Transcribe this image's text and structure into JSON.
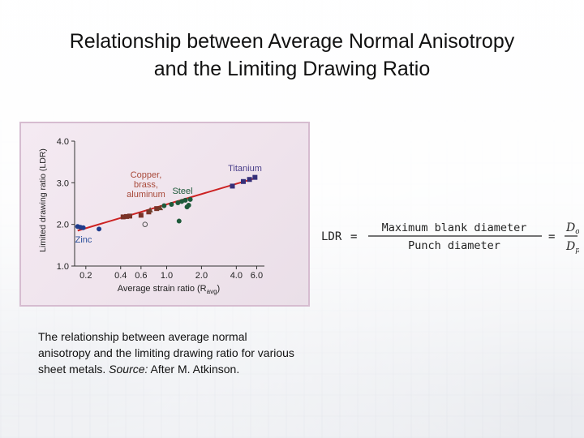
{
  "slide": {
    "title_line1": "Relationship between Average Normal Anisotropy",
    "title_line2": "and the Limiting Drawing Ratio",
    "caption_prefix": "The relationship between average normal anisotropy and the limiting drawing ratio for various sheet metals.  ",
    "caption_source_label": "Source:",
    "caption_source": "  After M. Atkinson."
  },
  "formula": {
    "lhs": "LDR",
    "eq1": "=",
    "numerator": "Maximum blank diameter",
    "denominator": "Punch diameter",
    "eq2": "=",
    "frac_num": "D",
    "frac_num_sub": "o",
    "frac_den": "D",
    "frac_den_sub": "p"
  },
  "chart_data": {
    "type": "scatter",
    "xlabel": "Average strain ratio (R",
    "xlabel_sub": "avg",
    "xlabel_end": ")",
    "ylabel": "Limited drawing ratio (LDR)",
    "x_scale": "log",
    "xlim": [
      0.16,
      7.0
    ],
    "ylim": [
      1.0,
      4.0
    ],
    "x_ticks": [
      0.2,
      0.4,
      0.6,
      1.0,
      2.0,
      4.0,
      6.0
    ],
    "x_tick_labels": [
      "0.2",
      "0.4",
      "0.6",
      "1.0",
      "2.0",
      "4.0",
      "6.0"
    ],
    "y_ticks": [
      1.0,
      2.0,
      3.0,
      4.0
    ],
    "y_tick_labels": [
      "1.0",
      "2.0",
      "3.0",
      "4.0"
    ],
    "trend_line": {
      "x": [
        0.17,
        6.0
      ],
      "y": [
        1.85,
        3.12
      ],
      "color": "#cc2222"
    },
    "series": [
      {
        "name": "Zinc",
        "marker": "circle",
        "color": "#1f3c8c",
        "x": [
          0.17,
          0.18,
          0.19,
          0.26
        ],
        "y": [
          1.95,
          1.93,
          1.92,
          1.89
        ]
      },
      {
        "name": "Copper, brass, aluminum",
        "marker": "square",
        "color": "#7a3328",
        "x": [
          0.42,
          0.45,
          0.48,
          0.6,
          0.7,
          0.82
        ],
        "y": [
          2.18,
          2.19,
          2.2,
          2.22,
          2.3,
          2.38
        ]
      },
      {
        "name": "Steel",
        "marker": "circle",
        "color": "#1e5a3a",
        "x": [
          0.95,
          1.1,
          1.25,
          1.35,
          1.45,
          1.5,
          1.55,
          1.6,
          1.28
        ],
        "y": [
          2.45,
          2.48,
          2.52,
          2.55,
          2.58,
          2.42,
          2.46,
          2.6,
          2.08
        ]
      },
      {
        "name": "Titanium",
        "marker": "square",
        "color": "#36307a",
        "x": [
          3.7,
          4.6,
          5.2,
          5.8
        ],
        "y": [
          2.92,
          3.03,
          3.08,
          3.13
        ]
      },
      {
        "name": "",
        "marker": "triangle",
        "color": "#6b3f2c",
        "x": [
          0.72,
          0.88
        ],
        "y": [
          2.35,
          2.4
        ]
      },
      {
        "name": "",
        "marker": "open-circle",
        "color": "#555555",
        "x": [
          0.65
        ],
        "y": [
          2.0
        ]
      }
    ],
    "annotations": [
      {
        "text": "Copper,",
        "color": "#a84a3a"
      },
      {
        "text": "brass,",
        "color": "#a84a3a"
      },
      {
        "text": "aluminum",
        "color": "#a84a3a"
      },
      {
        "text": "Steel",
        "color": "#1e5a3a"
      },
      {
        "text": "Titanium",
        "color": "#4a3f8a"
      },
      {
        "text": "Zinc",
        "color": "#2a4f9a"
      }
    ]
  }
}
